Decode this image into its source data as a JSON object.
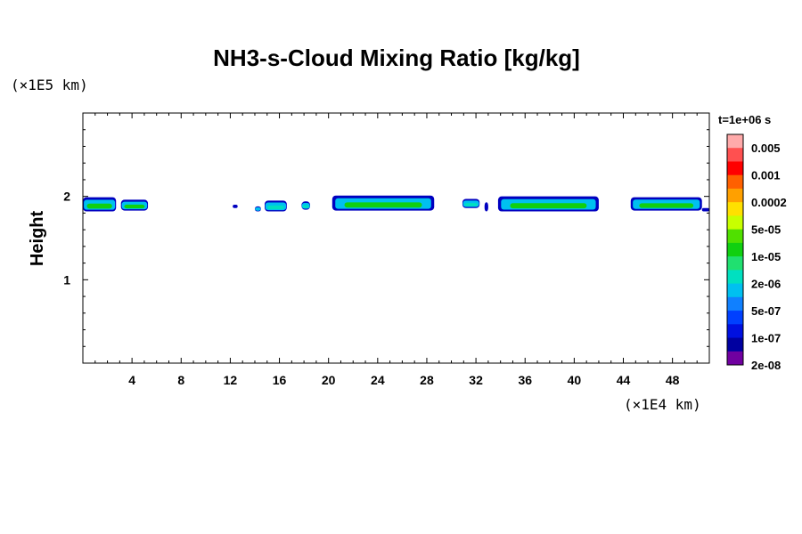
{
  "chart_data": {
    "type": "heatmap",
    "title": "NH3-s-Cloud Mixing Ratio [kg/kg]",
    "ylabel": "Height",
    "xunit": "(×1E4 km)",
    "yunit": "(×1E5 km)",
    "xlim": [
      0,
      51
    ],
    "ylim": [
      0,
      3
    ],
    "xticks": [
      4,
      8,
      12,
      16,
      20,
      24,
      28,
      32,
      36,
      40,
      44,
      48
    ],
    "yticks": [
      1,
      2
    ],
    "legend": {
      "title": "t=1e+06 s",
      "placement": "right",
      "levels": [
        "0.005",
        "0.001",
        "0.0002",
        "5e-05",
        "1e-05",
        "2e-06",
        "5e-07",
        "1e-07",
        "2e-08"
      ],
      "colors": [
        "#ffaaaa",
        "#ff5050",
        "#ff0000",
        "#ff6000",
        "#ffa000",
        "#ffe000",
        "#c8ff00",
        "#50e000",
        "#10d010",
        "#20e070",
        "#00e0c0",
        "#00c0f0",
        "#1080ff",
        "#0040ff",
        "#0010e0",
        "#0000a0",
        "#7000a0"
      ]
    },
    "cloud_layers": [
      {
        "x_start": 0.0,
        "x_end": 2.7,
        "top": 1.99,
        "bottom": 1.82,
        "core": "#10d010"
      },
      {
        "x_start": 3.1,
        "x_end": 5.3,
        "top": 1.96,
        "bottom": 1.83,
        "core": "#10d010"
      },
      {
        "x_start": 12.2,
        "x_end": 12.6,
        "top": 1.9,
        "bottom": 1.86,
        "core": "#0010e0"
      },
      {
        "x_start": 14.0,
        "x_end": 14.5,
        "top": 1.88,
        "bottom": 1.82,
        "core": "#00c0f0"
      },
      {
        "x_start": 14.8,
        "x_end": 16.6,
        "top": 1.95,
        "bottom": 1.82,
        "core": "#00e0c0"
      },
      {
        "x_start": 17.8,
        "x_end": 18.5,
        "top": 1.94,
        "bottom": 1.84,
        "core": "#00e0c0"
      },
      {
        "x_start": 20.3,
        "x_end": 28.6,
        "top": 2.01,
        "bottom": 1.83,
        "core": "#10d010"
      },
      {
        "x_start": 30.9,
        "x_end": 32.3,
        "top": 1.97,
        "bottom": 1.86,
        "core": "#00e0c0"
      },
      {
        "x_start": 32.7,
        "x_end": 33.0,
        "top": 1.93,
        "bottom": 1.82,
        "core": "#1080ff"
      },
      {
        "x_start": 33.8,
        "x_end": 42.0,
        "top": 2.0,
        "bottom": 1.82,
        "core": "#10d010"
      },
      {
        "x_start": 44.6,
        "x_end": 50.4,
        "top": 1.99,
        "bottom": 1.83,
        "core": "#10d010"
      },
      {
        "x_start": 50.4,
        "x_end": 51.0,
        "top": 1.86,
        "bottom": 1.82,
        "core": "#00c0f0"
      }
    ]
  }
}
